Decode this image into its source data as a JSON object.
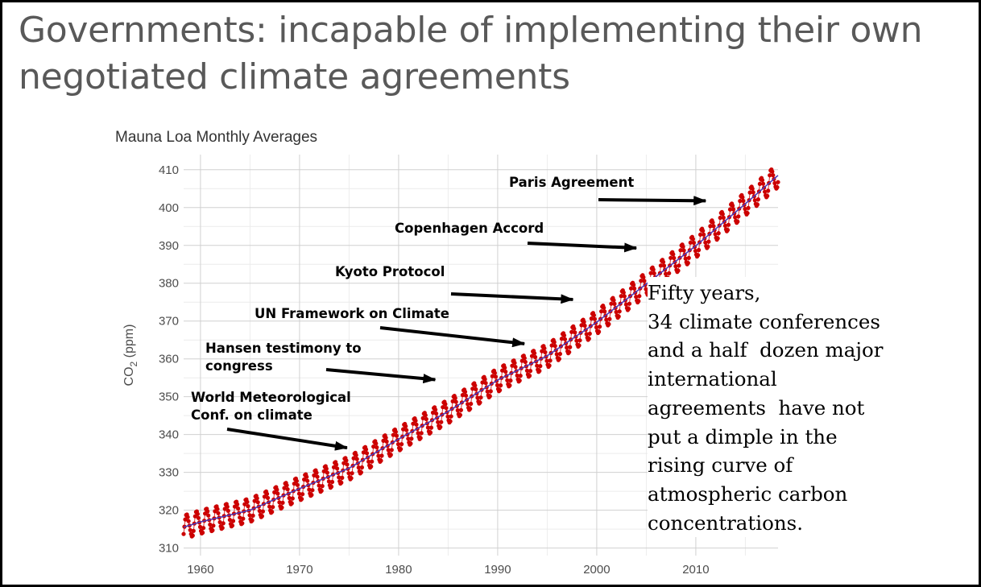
{
  "slide": {
    "title": "Governments: incapable of implementing their own negotiated climate agreements",
    "caption_lines": [
      "Fifty years,",
      "34 climate conferences",
      "and a half  dozen major",
      "international",
      "agreements  have not",
      "put a dimple in the",
      "rising curve of",
      "atmospheric carbon",
      "concentrations."
    ]
  },
  "chart_data": {
    "type": "line",
    "title": "Mauna Loa Monthly Averages",
    "xlabel": "",
    "ylabel": "CO2 (ppm)",
    "xlim": [
      1958.3,
      2018.3
    ],
    "ylim": [
      308,
      414
    ],
    "x_ticks": [
      1960,
      1970,
      1980,
      1990,
      2000,
      2010
    ],
    "y_ticks": [
      310,
      320,
      330,
      340,
      350,
      360,
      370,
      380,
      390,
      400,
      410
    ],
    "grid": true,
    "series": [
      {
        "kind": "monthly_points_and_trend",
        "points_color": "#cc0000",
        "line_color": "#4b3bb8",
        "trend": {
          "x": [
            1958.3,
            1960,
            1965,
            1970,
            1975,
            1980,
            1985,
            1990,
            1995,
            2000,
            2005,
            2010,
            2015,
            2018.3
          ],
          "y": [
            315.5,
            316.9,
            320.0,
            325.7,
            331.1,
            338.8,
            346.1,
            354.4,
            360.8,
            369.7,
            379.8,
            389.9,
            401.0,
            408.5
          ]
        },
        "seasonal_amplitude": 3.1
      }
    ],
    "annotations": [
      {
        "label": "World Meteorological Conf. on climate",
        "lines": [
          "World Meteorological",
          "Conf. on climate"
        ],
        "arrow_to": [
          1974.8,
          336.5
        ]
      },
      {
        "label": "Hansen testimony to congress",
        "lines": [
          "Hansen testimony to",
          "congress"
        ],
        "arrow_to": [
          1983.7,
          354.5
        ]
      },
      {
        "label": "UN Framework on Climate",
        "lines": [
          "UN Framework on Climate"
        ],
        "arrow_to": [
          1992.7,
          364.0
        ]
      },
      {
        "label": "Kyoto Protocol",
        "lines": [
          "Kyoto Protocol"
        ],
        "arrow_to": [
          1997.6,
          375.7
        ]
      },
      {
        "label": "Copenhagen Accord",
        "lines": [
          "Copenhagen Accord"
        ],
        "arrow_to": [
          2004.0,
          389.3
        ]
      },
      {
        "label": "Paris Agreement",
        "lines": [
          "Paris Agreement"
        ],
        "arrow_to": [
          2011.0,
          401.8
        ]
      }
    ]
  }
}
